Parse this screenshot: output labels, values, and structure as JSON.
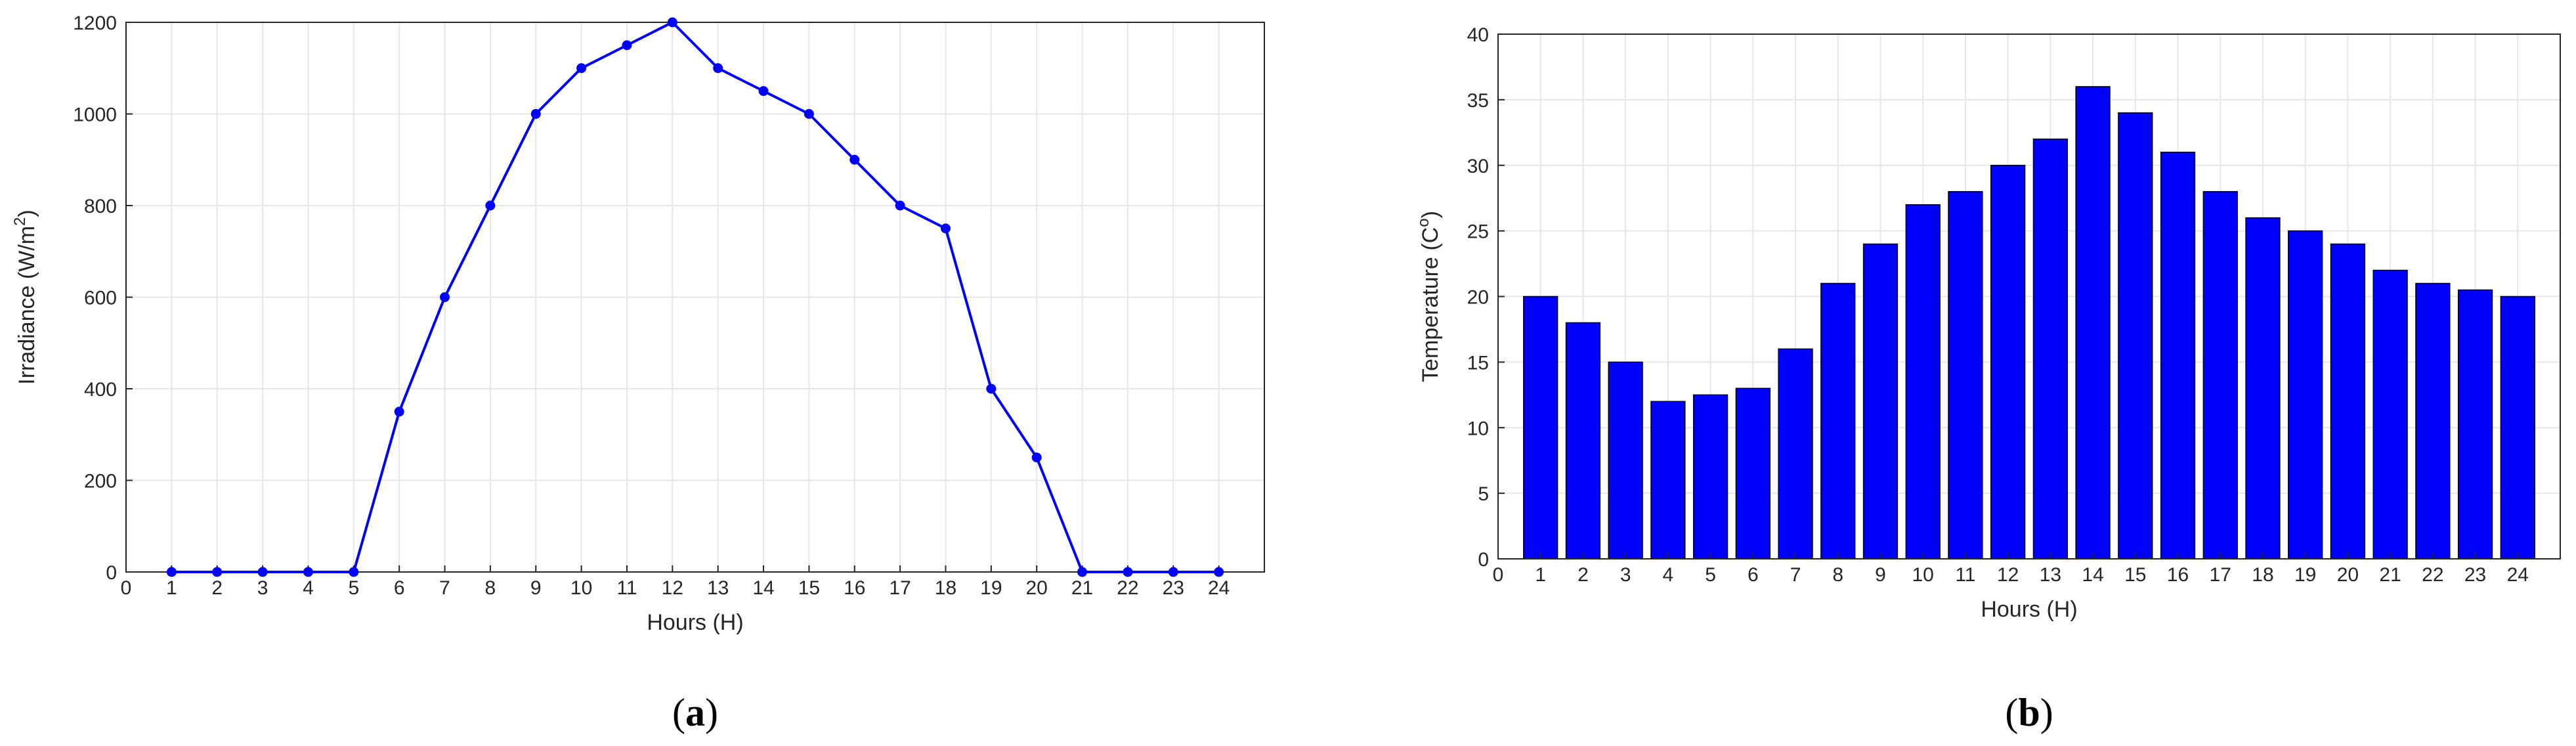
{
  "chart_data": [
    {
      "type": "line",
      "xlabel": "Hours (H)",
      "ylabel": "Irradiance (W/m",
      "ylabel_sup": "2",
      "ylabel_end": ")",
      "x": [
        1,
        2,
        3,
        4,
        5,
        6,
        7,
        8,
        9,
        10,
        11,
        12,
        13,
        14,
        15,
        16,
        17,
        18,
        19,
        20,
        21,
        22,
        23,
        24
      ],
      "values": [
        0,
        0,
        0,
        0,
        0,
        350,
        600,
        800,
        1000,
        1100,
        1150,
        1200,
        1100,
        1050,
        1000,
        900,
        800,
        750,
        400,
        250,
        0,
        0,
        0,
        0
      ],
      "xlim": [
        0,
        25
      ],
      "ylim": [
        0,
        1200
      ],
      "xticks": [
        "0",
        "1",
        "2",
        "3",
        "4",
        "5",
        "6",
        "7",
        "8",
        "9",
        "10",
        "11",
        "12",
        "13",
        "14",
        "15",
        "16",
        "17",
        "18",
        "19",
        "20",
        "21",
        "22",
        "23",
        "24"
      ],
      "yticks": [
        "0",
        "200",
        "400",
        "600",
        "800",
        "1000",
        "1200"
      ],
      "grid": true,
      "color": "#0000ff",
      "caption_open": "(",
      "caption_letter": "a",
      "caption_close": ")"
    },
    {
      "type": "bar",
      "xlabel": "Hours (H)",
      "ylabel": "Temperature (C",
      "ylabel_sup": "o",
      "ylabel_end": ")",
      "categories": [
        "1",
        "2",
        "3",
        "4",
        "5",
        "6",
        "7",
        "8",
        "9",
        "10",
        "11",
        "12",
        "13",
        "14",
        "15",
        "16",
        "17",
        "18",
        "19",
        "20",
        "21",
        "22",
        "23",
        "24"
      ],
      "values": [
        20,
        18,
        15,
        12,
        12.5,
        13,
        16,
        21,
        24,
        27,
        28,
        30,
        32,
        36,
        34,
        31,
        28,
        26,
        25,
        24,
        22,
        21,
        20.5,
        20
      ],
      "xlim": [
        0,
        25
      ],
      "ylim": [
        0,
        40
      ],
      "xticks": [
        "0",
        "1",
        "2",
        "3",
        "4",
        "5",
        "6",
        "7",
        "8",
        "9",
        "10",
        "11",
        "12",
        "13",
        "14",
        "15",
        "16",
        "17",
        "18",
        "19",
        "20",
        "21",
        "22",
        "23",
        "24"
      ],
      "yticks": [
        "0",
        "5",
        "10",
        "15",
        "20",
        "25",
        "30",
        "35",
        "40"
      ],
      "grid": true,
      "color": "#0000ff",
      "caption_open": "(",
      "caption_letter": "b",
      "caption_close": ")"
    }
  ]
}
